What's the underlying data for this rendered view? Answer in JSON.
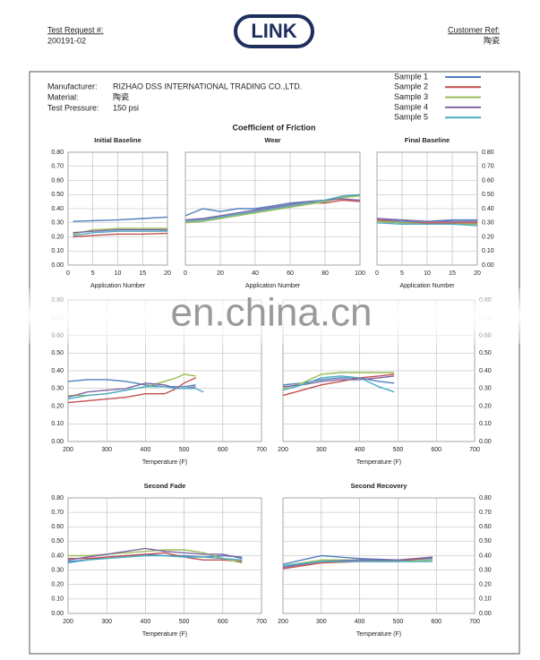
{
  "header": {
    "test_request_label": "Test Request #:",
    "test_request": "200191-02",
    "logo": "LINK",
    "customer_ref_label": "Customer Ref:",
    "customer_ref": "陶瓷"
  },
  "info": [
    {
      "label": "Manufacturer:",
      "value": "RIZHAO DSS INTERNATIONAL TRADING CO.,LTD."
    },
    {
      "label": "Material:",
      "value": "陶瓷"
    },
    {
      "label": "Test Pressure:",
      "value": "150 psi"
    }
  ],
  "legend": [
    {
      "name": "Sample 1",
      "color": "#4f81bd"
    },
    {
      "name": "Sample 2",
      "color": "#c0504d"
    },
    {
      "name": "Sample 3",
      "color": "#9bbb59"
    },
    {
      "name": "Sample 4",
      "color": "#8064a2"
    },
    {
      "name": "Sample 5",
      "color": "#4bacc6"
    }
  ],
  "report_title": "Coefficient of Friction",
  "watermark": "en.china.cn",
  "chart_data": [
    {
      "type": "line",
      "title": "Initial Baseline",
      "xlabel": "Application Number",
      "grid": true,
      "xlim": [
        0,
        20
      ],
      "xticks": [
        0,
        5,
        10,
        15,
        20
      ],
      "ylim": [
        0,
        0.8
      ],
      "yticks": [
        {
          "value": 0,
          "label": "0.00"
        },
        {
          "value": 0.1,
          "label": "0.10"
        },
        {
          "value": 0.2,
          "label": "0.20"
        },
        {
          "value": 0.3,
          "label": "0.30"
        },
        {
          "value": 0.4,
          "label": "0.40"
        },
        {
          "value": 0.5,
          "label": "0.50"
        },
        {
          "value": 0.6,
          "label": "0.60"
        },
        {
          "value": 0.7,
          "label": "0.70"
        },
        {
          "value": 0.8,
          "label": "0.80"
        }
      ],
      "x": [
        1,
        5,
        10,
        15,
        20
      ],
      "series": [
        {
          "values": [
            0.31,
            0.315,
            0.32,
            0.33,
            0.34
          ]
        },
        {
          "values": [
            0.2,
            0.21,
            0.22,
            0.22,
            0.225
          ]
        },
        {
          "values": [
            0.22,
            0.25,
            0.26,
            0.26,
            0.26
          ]
        },
        {
          "values": [
            0.23,
            0.24,
            0.25,
            0.25,
            0.25
          ]
        },
        {
          "values": [
            0.21,
            0.23,
            0.24,
            0.24,
            0.24
          ]
        }
      ]
    },
    {
      "type": "line",
      "title": "Wear",
      "xlabel": "Application Number",
      "grid": true,
      "xlim": [
        0,
        100
      ],
      "xticks": [
        0,
        20,
        40,
        60,
        80,
        100
      ],
      "ylim": [
        0,
        0.8
      ],
      "yticks": [
        {
          "value": 0,
          "label": "0.00"
        },
        {
          "value": 0.1,
          "label": "0.10"
        },
        {
          "value": 0.2,
          "label": "0.20"
        },
        {
          "value": 0.3,
          "label": "0.30"
        },
        {
          "value": 0.4,
          "label": "0.40"
        },
        {
          "value": 0.5,
          "label": "0.50"
        },
        {
          "value": 0.6,
          "label": "0.60"
        },
        {
          "value": 0.7,
          "label": "0.70"
        },
        {
          "value": 0.8,
          "label": "0.80"
        }
      ],
      "x": [
        0,
        10,
        20,
        30,
        40,
        50,
        60,
        70,
        80,
        90,
        100
      ],
      "series": [
        {
          "values": [
            0.35,
            0.4,
            0.38,
            0.4,
            0.4,
            0.42,
            0.44,
            0.45,
            0.46,
            0.48,
            0.5
          ]
        },
        {
          "values": [
            0.31,
            0.32,
            0.34,
            0.36,
            0.38,
            0.4,
            0.42,
            0.44,
            0.44,
            0.46,
            0.45
          ]
        },
        {
          "values": [
            0.3,
            0.31,
            0.33,
            0.35,
            0.37,
            0.39,
            0.41,
            0.43,
            0.45,
            0.48,
            0.49
          ]
        },
        {
          "values": [
            0.32,
            0.33,
            0.35,
            0.37,
            0.39,
            0.41,
            0.43,
            0.45,
            0.46,
            0.47,
            0.46
          ]
        },
        {
          "values": [
            0.31,
            0.32,
            0.34,
            0.36,
            0.38,
            0.4,
            0.42,
            0.44,
            0.46,
            0.49,
            0.5
          ]
        }
      ]
    },
    {
      "type": "line",
      "title": "Final Baseline",
      "xlabel": "Application Number",
      "grid": true,
      "xlim": [
        0,
        20
      ],
      "xticks": [
        0,
        5,
        10,
        15,
        20
      ],
      "ylim": [
        0,
        0.8
      ],
      "yticks": [
        {
          "value": 0,
          "label": "0.00"
        },
        {
          "value": 0.1,
          "label": "0.10"
        },
        {
          "value": 0.2,
          "label": "0.20"
        },
        {
          "value": 0.3,
          "label": "0.30"
        },
        {
          "value": 0.4,
          "label": "0.40"
        },
        {
          "value": 0.5,
          "label": "0.50"
        },
        {
          "value": 0.6,
          "label": "0.60"
        },
        {
          "value": 0.7,
          "label": "0.70"
        },
        {
          "value": 0.8,
          "label": "0.80"
        }
      ],
      "x": [
        0,
        5,
        10,
        15,
        20
      ],
      "series": [
        {
          "values": [
            0.33,
            0.31,
            0.31,
            0.32,
            0.32
          ]
        },
        {
          "values": [
            0.32,
            0.3,
            0.3,
            0.3,
            0.3
          ]
        },
        {
          "values": [
            0.31,
            0.3,
            0.29,
            0.29,
            0.29
          ]
        },
        {
          "values": [
            0.33,
            0.32,
            0.31,
            0.31,
            0.31
          ]
        },
        {
          "values": [
            0.3,
            0.29,
            0.29,
            0.29,
            0.28
          ]
        }
      ]
    },
    {
      "type": "line",
      "xlabel": "Temperature (F)",
      "grid": true,
      "xlim": [
        200,
        700
      ],
      "xticks": [
        200,
        300,
        400,
        500,
        600,
        700
      ],
      "ylim": [
        0,
        0.8
      ],
      "yticks": [
        {
          "value": 0,
          "label": "0.00"
        },
        {
          "value": 0.1,
          "label": "0.10"
        },
        {
          "value": 0.2,
          "label": "0.20"
        },
        {
          "value": 0.3,
          "label": "0.30"
        },
        {
          "value": 0.4,
          "label": "0.40"
        },
        {
          "value": 0.5,
          "label": "0.50"
        },
        {
          "value": 0.6,
          "label": "0.60"
        },
        {
          "value": 0.7,
          "label": "0.70"
        },
        {
          "value": 0.8,
          "label": "0.80"
        }
      ],
      "x": [
        200,
        250,
        300,
        350,
        400,
        450,
        480,
        500,
        530,
        550
      ],
      "series": [
        {
          "values": [
            0.34,
            0.35,
            0.35,
            0.34,
            0.32,
            0.31,
            0.31,
            0.31,
            0.32,
            null
          ]
        },
        {
          "values": [
            0.22,
            0.23,
            0.24,
            0.25,
            0.27,
            0.27,
            0.3,
            0.33,
            0.36,
            null
          ]
        },
        {
          "values": [
            0.26,
            0.26,
            0.27,
            0.29,
            0.31,
            0.34,
            0.36,
            0.38,
            0.37,
            null
          ]
        },
        {
          "values": [
            0.25,
            0.28,
            0.29,
            0.3,
            0.33,
            0.32,
            0.3,
            0.3,
            0.31,
            null
          ]
        },
        {
          "values": [
            0.24,
            0.26,
            0.27,
            0.29,
            0.31,
            0.31,
            0.3,
            0.3,
            0.3,
            0.28
          ]
        }
      ]
    },
    {
      "type": "line",
      "xlabel": "Temperature (F)",
      "grid": true,
      "xlim": [
        200,
        700
      ],
      "xticks": [
        200,
        300,
        400,
        500,
        600,
        700
      ],
      "ylim": [
        0,
        0.8
      ],
      "yticks": [
        {
          "value": 0,
          "label": "0.00"
        },
        {
          "value": 0.1,
          "label": "0.10"
        },
        {
          "value": 0.2,
          "label": "0.20"
        },
        {
          "value": 0.3,
          "label": "0.30"
        },
        {
          "value": 0.4,
          "label": "0.40"
        },
        {
          "value": 0.5,
          "label": "0.50"
        },
        {
          "value": 0.6,
          "label": "0.60"
        },
        {
          "value": 0.7,
          "label": "0.70"
        },
        {
          "value": 0.8,
          "label": "0.80"
        }
      ],
      "x": [
        200,
        250,
        300,
        350,
        400,
        450,
        490
      ],
      "series": [
        {
          "values": [
            0.32,
            0.33,
            0.35,
            0.36,
            0.36,
            0.34,
            0.33
          ]
        },
        {
          "values": [
            0.26,
            0.29,
            0.32,
            0.34,
            0.36,
            0.37,
            0.38
          ]
        },
        {
          "values": [
            0.3,
            0.33,
            0.38,
            0.39,
            0.39,
            0.39,
            0.39
          ]
        },
        {
          "values": [
            0.31,
            0.32,
            0.34,
            0.35,
            0.35,
            0.36,
            0.37
          ]
        },
        {
          "values": [
            0.29,
            0.32,
            0.36,
            0.37,
            0.36,
            0.31,
            0.28
          ]
        }
      ]
    },
    {
      "type": "line",
      "title": "Second Fade",
      "xlabel": "Temperature (F)",
      "grid": true,
      "xlim": [
        200,
        700
      ],
      "xticks": [
        200,
        300,
        400,
        500,
        600,
        700
      ],
      "ylim": [
        0,
        0.8
      ],
      "yticks": [
        {
          "value": 0,
          "label": "0.00"
        },
        {
          "value": 0.1,
          "label": "0.10"
        },
        {
          "value": 0.2,
          "label": "0.20"
        },
        {
          "value": 0.3,
          "label": "0.30"
        },
        {
          "value": 0.4,
          "label": "0.40"
        },
        {
          "value": 0.5,
          "label": "0.50"
        },
        {
          "value": 0.6,
          "label": "0.60"
        },
        {
          "value": 0.7,
          "label": "0.70"
        },
        {
          "value": 0.8,
          "label": "0.80"
        }
      ],
      "x": [
        200,
        250,
        300,
        350,
        400,
        450,
        500,
        550,
        600,
        650
      ],
      "series": [
        {
          "values": [
            0.36,
            0.37,
            0.39,
            0.4,
            0.41,
            0.4,
            0.4,
            0.39,
            0.4,
            0.39
          ]
        },
        {
          "values": [
            0.38,
            0.38,
            0.39,
            0.4,
            0.41,
            0.42,
            0.39,
            0.37,
            0.37,
            0.36
          ]
        },
        {
          "values": [
            0.4,
            0.4,
            0.41,
            0.42,
            0.43,
            0.44,
            0.44,
            0.42,
            0.38,
            0.35
          ]
        },
        {
          "values": [
            0.37,
            0.39,
            0.41,
            0.43,
            0.45,
            0.43,
            0.42,
            0.41,
            0.41,
            0.38
          ]
        },
        {
          "values": [
            0.35,
            0.37,
            0.38,
            0.39,
            0.4,
            0.4,
            0.39,
            0.39,
            0.38,
            0.37
          ]
        }
      ]
    },
    {
      "type": "line",
      "title": "Second Recovery",
      "xlabel": "Temperature (F)",
      "grid": true,
      "xlim": [
        200,
        700
      ],
      "xticks": [
        200,
        300,
        400,
        500,
        600,
        700
      ],
      "ylim": [
        0,
        0.8
      ],
      "yticks": [
        {
          "value": 0,
          "label": "0.00"
        },
        {
          "value": 0.1,
          "label": "0.10"
        },
        {
          "value": 0.2,
          "label": "0.20"
        },
        {
          "value": 0.3,
          "label": "0.30"
        },
        {
          "value": 0.4,
          "label": "0.40"
        },
        {
          "value": 0.5,
          "label": "0.50"
        },
        {
          "value": 0.6,
          "label": "0.60"
        },
        {
          "value": 0.7,
          "label": "0.70"
        },
        {
          "value": 0.8,
          "label": "0.80"
        }
      ],
      "x": [
        200,
        300,
        400,
        500,
        590
      ],
      "series": [
        {
          "values": [
            0.34,
            0.4,
            0.38,
            0.37,
            0.38
          ]
        },
        {
          "values": [
            0.31,
            0.35,
            0.36,
            0.36,
            0.39
          ]
        },
        {
          "values": [
            0.33,
            0.37,
            0.37,
            0.36,
            0.37
          ]
        },
        {
          "values": [
            0.32,
            0.36,
            0.37,
            0.37,
            0.39
          ]
        },
        {
          "values": [
            0.33,
            0.36,
            0.36,
            0.36,
            0.36
          ]
        }
      ]
    }
  ]
}
